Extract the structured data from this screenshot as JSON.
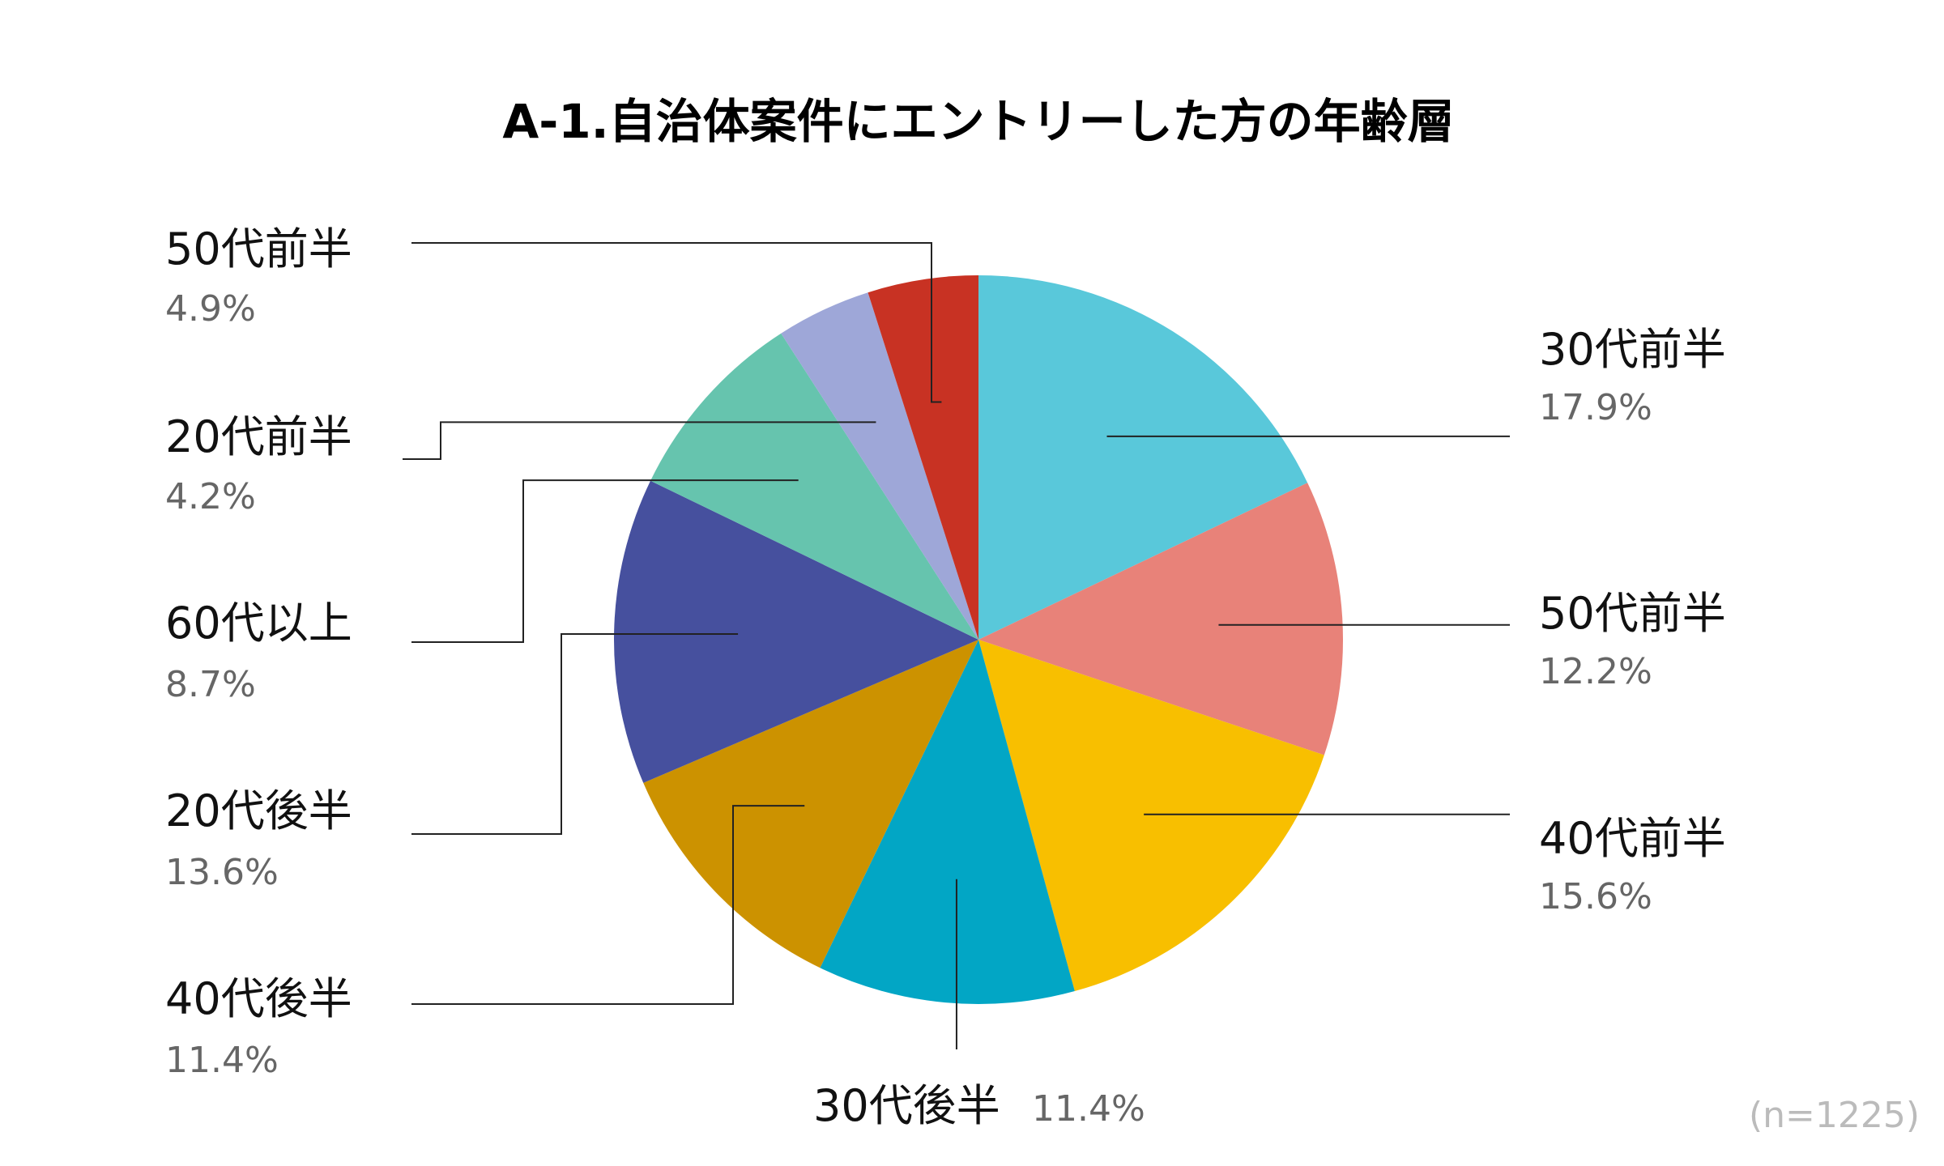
{
  "chart_data": {
    "type": "pie",
    "title": "A-1.自治体案件にエントリーした方の年齢層",
    "note": "(n=1225)",
    "slices": [
      {
        "name": "30代前半",
        "value": 17.9,
        "value_label": "17.9%",
        "color": "#59C8DA"
      },
      {
        "name": "50代前半",
        "value": 12.2,
        "value_label": "12.2%",
        "color": "#E88279"
      },
      {
        "name": "40代前半",
        "value": 15.6,
        "value_label": "15.6%",
        "color": "#F8BF00"
      },
      {
        "name": "30代後半",
        "value": 11.4,
        "value_label": "11.4%",
        "color": "#02A6C5"
      },
      {
        "name": "40代後半",
        "value": 11.4,
        "value_label": "11.4%",
        "color": "#CC9200"
      },
      {
        "name": "20代後半",
        "value": 13.6,
        "value_label": "13.6%",
        "color": "#46509E"
      },
      {
        "name": "60代以上",
        "value": 8.7,
        "value_label": "8.7%",
        "color": "#66C4AE"
      },
      {
        "name": "20代前半",
        "value": 4.2,
        "value_label": "4.2%",
        "color": "#9EA7D8"
      },
      {
        "name": "50代前半",
        "value": 4.9,
        "value_label": "4.9%",
        "color": "#C83223"
      }
    ],
    "start_angle": "12 o'clock",
    "direction": "clockwise",
    "legend": "none (leader-line labels)"
  }
}
